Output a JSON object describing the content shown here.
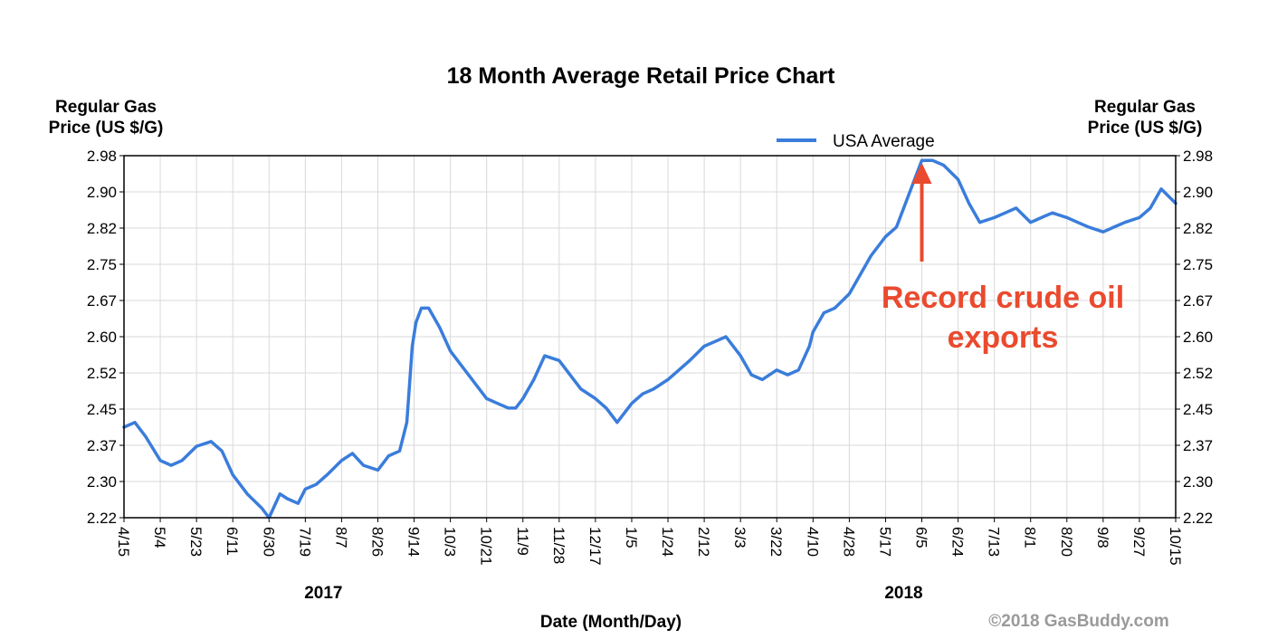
{
  "colors": {
    "line": "#3a7ddb",
    "annotation": "#ea4a2e",
    "grid": "#d9d9d9",
    "copyright": "#9a9a9a"
  },
  "chart_data": {
    "type": "line",
    "title": "18 Month Average Retail Price Chart",
    "ylabel_left": [
      "Regular Gas",
      "Price (US $/G)"
    ],
    "ylabel_right": [
      "Regular Gas",
      "Price (US $/G)"
    ],
    "xlabel": "Date (Month/Day)",
    "ylim": [
      2.22,
      2.98
    ],
    "yticks": [
      "2.98",
      "2.90",
      "2.82",
      "2.75",
      "2.67",
      "2.60",
      "2.52",
      "2.45",
      "2.37",
      "2.30",
      "2.22"
    ],
    "xticks": [
      "4/15",
      "5/4",
      "5/23",
      "6/11",
      "6/30",
      "7/19",
      "8/7",
      "8/26",
      "9/14",
      "10/3",
      "10/21",
      "11/9",
      "11/28",
      "12/17",
      "1/5",
      "1/24",
      "2/12",
      "3/3",
      "3/22",
      "4/10",
      "4/28",
      "5/17",
      "6/5",
      "6/24",
      "7/13",
      "8/1",
      "8/20",
      "9/8",
      "9/27",
      "10/15"
    ],
    "year_labels": [
      {
        "text": "2017",
        "at_tick": 5.5
      },
      {
        "text": "2018",
        "at_tick": 21.5
      }
    ],
    "grid": true,
    "legend": {
      "position": "top-right",
      "label": "USA Average"
    },
    "series": [
      {
        "name": "USA Average",
        "x": [
          0,
          0.3,
          0.6,
          1.0,
          1.3,
          1.6,
          2.0,
          2.4,
          2.7,
          3.0,
          3.4,
          3.8,
          4.0,
          4.3,
          4.5,
          4.8,
          5.0,
          5.3,
          5.6,
          6.0,
          6.3,
          6.6,
          7.0,
          7.3,
          7.6,
          7.8,
          7.95,
          8.05,
          8.2,
          8.4,
          8.7,
          9.0,
          9.3,
          9.6,
          10.0,
          10.3,
          10.6,
          10.8,
          11.0,
          11.3,
          11.6,
          12.0,
          12.3,
          12.6,
          13.0,
          13.3,
          13.6,
          14.0,
          14.3,
          14.6,
          15.0,
          15.3,
          15.6,
          16.0,
          16.3,
          16.6,
          17.0,
          17.3,
          17.6,
          18.0,
          18.3,
          18.6,
          18.9,
          19.0,
          19.3,
          19.6,
          20.0,
          20.3,
          20.6,
          21.0,
          21.3,
          21.5,
          21.8,
          22.0,
          22.3,
          22.6,
          23.0,
          23.3,
          23.6,
          24.0,
          24.3,
          24.6,
          25.0,
          25.3,
          25.6,
          26.0,
          26.3,
          26.6,
          27.0,
          27.3,
          27.6,
          28.0,
          28.3,
          28.6,
          29.0
        ],
        "values": [
          2.41,
          2.42,
          2.39,
          2.34,
          2.33,
          2.34,
          2.37,
          2.38,
          2.36,
          2.31,
          2.27,
          2.24,
          2.22,
          2.27,
          2.26,
          2.25,
          2.28,
          2.29,
          2.31,
          2.34,
          2.355,
          2.33,
          2.32,
          2.35,
          2.36,
          2.42,
          2.58,
          2.63,
          2.66,
          2.66,
          2.62,
          2.57,
          2.54,
          2.51,
          2.47,
          2.46,
          2.45,
          2.45,
          2.47,
          2.51,
          2.56,
          2.55,
          2.52,
          2.49,
          2.47,
          2.45,
          2.42,
          2.46,
          2.48,
          2.49,
          2.51,
          2.53,
          2.55,
          2.58,
          2.59,
          2.6,
          2.56,
          2.52,
          2.51,
          2.53,
          2.52,
          2.53,
          2.58,
          2.61,
          2.65,
          2.66,
          2.69,
          2.73,
          2.77,
          2.81,
          2.83,
          2.87,
          2.93,
          2.97,
          2.97,
          2.96,
          2.93,
          2.88,
          2.84,
          2.85,
          2.86,
          2.87,
          2.84,
          2.85,
          2.86,
          2.85,
          2.84,
          2.83,
          2.82,
          2.83,
          2.84,
          2.85,
          2.87,
          2.91,
          2.88
        ]
      }
    ],
    "annotation": {
      "lines": [
        "Record crude oil",
        "exports"
      ],
      "arrow_at_tick": 22.0
    }
  },
  "copyright": "©2018 GasBuddy.com"
}
